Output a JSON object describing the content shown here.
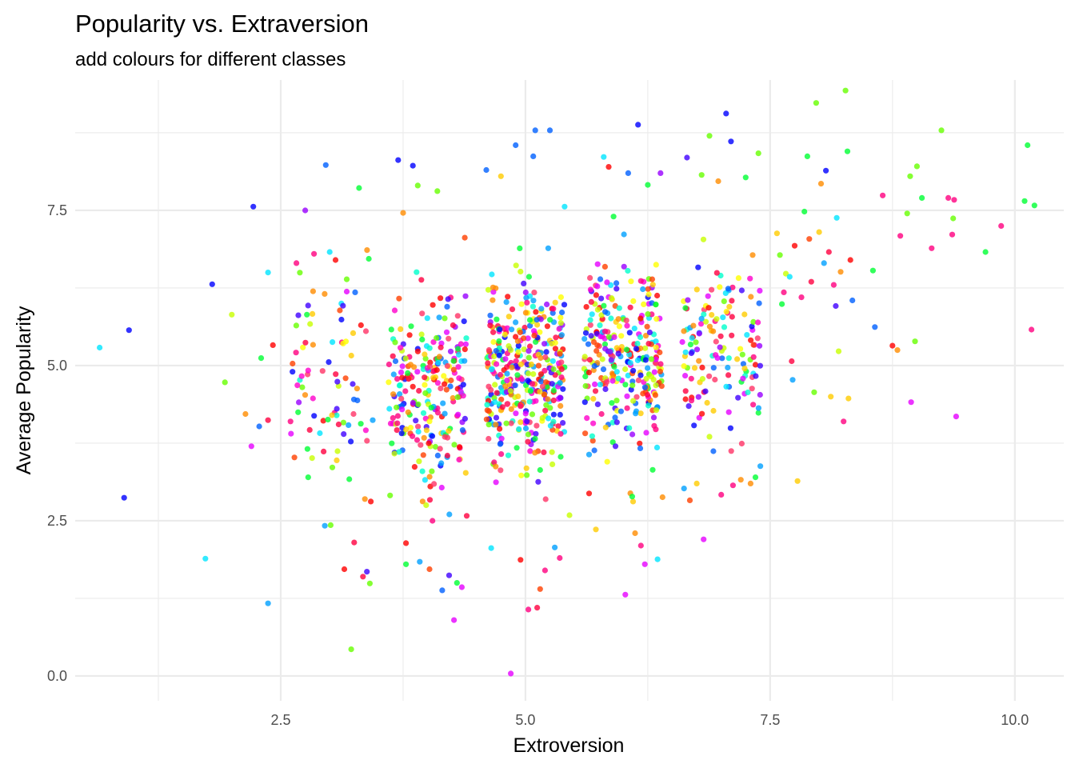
{
  "chart_data": {
    "type": "scatter",
    "title": "Popularity vs. Extraversion",
    "subtitle": "add colours for different classes",
    "xlabel": "Extroversion",
    "ylabel": "Average Popularity",
    "xlim": [
      0.4,
      10.5
    ],
    "ylim": [
      -0.4,
      9.6
    ],
    "x_ticks": [
      2.5,
      5.0,
      7.5,
      10.0
    ],
    "x_tick_labels": [
      "2.5",
      "5.0",
      "7.5",
      "10.0"
    ],
    "x_minor": [
      1.25,
      3.75,
      6.25,
      8.75
    ],
    "y_ticks": [
      0.0,
      2.5,
      5.0,
      7.5
    ],
    "y_tick_labels": [
      "0.0",
      "2.5",
      "5.0",
      "7.5"
    ],
    "y_minor": [
      1.25,
      3.75,
      6.25,
      8.75
    ],
    "grid": true,
    "legend": "none",
    "point_alpha": 0.8,
    "class_colors": [
      "#ff0000",
      "#ff4000",
      "#ff8c00",
      "#ffcc00",
      "#ffff00",
      "#c8ff00",
      "#66ff00",
      "#00ff33",
      "#00ffcc",
      "#00e5ff",
      "#00a0ff",
      "#0060ff",
      "#0000ff",
      "#4000ff",
      "#9900ff",
      "#e600ff",
      "#ff00cc",
      "#ff0080",
      "#ff0040",
      "#ff3366"
    ],
    "points": [
      {
        "x": 0.65,
        "y": 5.29,
        "c": "#00e5ff"
      },
      {
        "x": 0.9,
        "y": 2.87,
        "c": "#0000ff"
      },
      {
        "x": 0.95,
        "y": 5.57,
        "c": "#0000ff"
      },
      {
        "x": 1.73,
        "y": 1.89,
        "c": "#00e5ff"
      },
      {
        "x": 1.8,
        "y": 6.31,
        "c": "#0000ff"
      },
      {
        "x": 1.93,
        "y": 4.73,
        "c": "#66ff00"
      },
      {
        "x": 2.0,
        "y": 5.82,
        "c": "#c8ff00"
      },
      {
        "x": 2.14,
        "y": 4.22,
        "c": "#ff8c00"
      },
      {
        "x": 2.2,
        "y": 3.7,
        "c": "#e600ff"
      },
      {
        "x": 2.22,
        "y": 7.56,
        "c": "#0000ff"
      },
      {
        "x": 2.28,
        "y": 4.02,
        "c": "#0060ff"
      },
      {
        "x": 2.3,
        "y": 5.12,
        "c": "#00ff33"
      },
      {
        "x": 2.37,
        "y": 1.17,
        "c": "#00a0ff"
      },
      {
        "x": 2.37,
        "y": 6.5,
        "c": "#00e5ff"
      },
      {
        "x": 2.37,
        "y": 4.12,
        "c": "#ff0040"
      },
      {
        "x": 2.42,
        "y": 5.33,
        "c": "#ff0000"
      },
      {
        "x": 2.6,
        "y": 4.1,
        "c": "#ff0080"
      },
      {
        "x": 2.62,
        "y": 4.9,
        "c": "#0000ff"
      },
      {
        "x": 2.64,
        "y": 3.52,
        "c": "#ff4000"
      },
      {
        "x": 2.66,
        "y": 6.65,
        "c": "#ff0080"
      },
      {
        "x": 2.68,
        "y": 5.81,
        "c": "#4000ff"
      },
      {
        "x": 2.72,
        "y": 4.65,
        "c": "#66ff00"
      },
      {
        "x": 2.75,
        "y": 7.5,
        "c": "#9900ff"
      },
      {
        "x": 2.78,
        "y": 3.2,
        "c": "#00ff33"
      },
      {
        "x": 2.8,
        "y": 5.67,
        "c": "#c8ff00"
      },
      {
        "x": 2.84,
        "y": 6.8,
        "c": "#ff0080"
      },
      {
        "x": 2.9,
        "y": 3.91,
        "c": "#00e5ff"
      },
      {
        "x": 2.95,
        "y": 2.42,
        "c": "#00a0ff"
      },
      {
        "x": 2.96,
        "y": 8.23,
        "c": "#0060ff"
      },
      {
        "x": 3.0,
        "y": 6.83,
        "c": "#00e5ff"
      },
      {
        "x": 3.01,
        "y": 2.43,
        "c": "#66ff00"
      },
      {
        "x": 3.05,
        "y": 4.24,
        "c": "#ff0080"
      },
      {
        "x": 3.06,
        "y": 6.7,
        "c": "#ff0000"
      },
      {
        "x": 3.08,
        "y": 3.62,
        "c": "#c8ff00"
      },
      {
        "x": 3.12,
        "y": 5.74,
        "c": "#0000ff"
      },
      {
        "x": 3.15,
        "y": 1.72,
        "c": "#ff0000"
      },
      {
        "x": 3.2,
        "y": 3.17,
        "c": "#00ff33"
      },
      {
        "x": 3.22,
        "y": 0.43,
        "c": "#66ff00"
      },
      {
        "x": 3.25,
        "y": 2.15,
        "c": "#ff0040"
      },
      {
        "x": 3.26,
        "y": 6.18,
        "c": "#0060ff"
      },
      {
        "x": 3.28,
        "y": 4.63,
        "c": "#ff8c00"
      },
      {
        "x": 3.3,
        "y": 7.86,
        "c": "#00ff33"
      },
      {
        "x": 3.32,
        "y": 5.65,
        "c": "#ff0000"
      },
      {
        "x": 3.34,
        "y": 1.6,
        "c": "#ff0040"
      },
      {
        "x": 3.36,
        "y": 2.85,
        "c": "#ff8c00"
      },
      {
        "x": 3.38,
        "y": 1.68,
        "c": "#4000ff"
      },
      {
        "x": 3.4,
        "y": 6.72,
        "c": "#00ff33"
      },
      {
        "x": 3.41,
        "y": 1.49,
        "c": "#66ff00"
      },
      {
        "x": 3.42,
        "y": 2.81,
        "c": "#ff0000"
      },
      {
        "x": 3.44,
        "y": 4.12,
        "c": "#00a0ff"
      },
      {
        "x": 7.57,
        "y": 7.13,
        "c": "#ffcc00"
      },
      {
        "x": 7.6,
        "y": 6.78,
        "c": "#66ff00"
      },
      {
        "x": 7.62,
        "y": 5.99,
        "c": "#00ff33"
      },
      {
        "x": 7.64,
        "y": 6.18,
        "c": "#ff0080"
      },
      {
        "x": 7.66,
        "y": 6.48,
        "c": "#c8ff00"
      },
      {
        "x": 7.7,
        "y": 6.43,
        "c": "#00e5ff"
      },
      {
        "x": 7.72,
        "y": 5.07,
        "c": "#ff0040"
      },
      {
        "x": 7.73,
        "y": 4.77,
        "c": "#00a0ff"
      },
      {
        "x": 7.75,
        "y": 6.93,
        "c": "#ff0000"
      },
      {
        "x": 7.78,
        "y": 3.14,
        "c": "#ffcc00"
      },
      {
        "x": 7.82,
        "y": 6.1,
        "c": "#ff0080"
      },
      {
        "x": 7.85,
        "y": 7.48,
        "c": "#00ff33"
      },
      {
        "x": 7.88,
        "y": 8.37,
        "c": "#00ff33"
      },
      {
        "x": 7.9,
        "y": 7.04,
        "c": "#ff4000"
      },
      {
        "x": 7.92,
        "y": 6.35,
        "c": "#ff0040"
      },
      {
        "x": 7.95,
        "y": 4.57,
        "c": "#66ff00"
      },
      {
        "x": 7.97,
        "y": 9.23,
        "c": "#66ff00"
      },
      {
        "x": 8.0,
        "y": 7.15,
        "c": "#ffcc00"
      },
      {
        "x": 8.02,
        "y": 7.93,
        "c": "#ff8c00"
      },
      {
        "x": 8.05,
        "y": 6.65,
        "c": "#00a0ff"
      },
      {
        "x": 8.07,
        "y": 8.14,
        "c": "#0000ff"
      },
      {
        "x": 8.1,
        "y": 6.83,
        "c": "#ff0040"
      },
      {
        "x": 8.12,
        "y": 4.5,
        "c": "#ffcc00"
      },
      {
        "x": 8.15,
        "y": 6.3,
        "c": "#ff0080"
      },
      {
        "x": 8.17,
        "y": 5.96,
        "c": "#4000ff"
      },
      {
        "x": 8.18,
        "y": 7.38,
        "c": "#00e5ff"
      },
      {
        "x": 8.2,
        "y": 5.23,
        "c": "#c8ff00"
      },
      {
        "x": 8.22,
        "y": 6.51,
        "c": "#ff8c00"
      },
      {
        "x": 8.25,
        "y": 4.1,
        "c": "#ff0080"
      },
      {
        "x": 8.27,
        "y": 9.43,
        "c": "#66ff00"
      },
      {
        "x": 8.29,
        "y": 8.45,
        "c": "#00ff33"
      },
      {
        "x": 8.3,
        "y": 4.47,
        "c": "#ffcc00"
      },
      {
        "x": 8.32,
        "y": 6.7,
        "c": "#ff0000"
      },
      {
        "x": 8.34,
        "y": 6.05,
        "c": "#0060ff"
      },
      {
        "x": 8.55,
        "y": 6.53,
        "c": "#00ff33"
      },
      {
        "x": 8.57,
        "y": 5.62,
        "c": "#0060ff"
      },
      {
        "x": 8.65,
        "y": 7.74,
        "c": "#ff0080"
      },
      {
        "x": 8.75,
        "y": 5.32,
        "c": "#ff0000"
      },
      {
        "x": 8.8,
        "y": 5.25,
        "c": "#ff8c00"
      },
      {
        "x": 8.83,
        "y": 7.09,
        "c": "#ff0080"
      },
      {
        "x": 8.9,
        "y": 7.45,
        "c": "#66ff00"
      },
      {
        "x": 8.93,
        "y": 8.05,
        "c": "#66ff00"
      },
      {
        "x": 8.94,
        "y": 4.41,
        "c": "#e600ff"
      },
      {
        "x": 8.98,
        "y": 5.39,
        "c": "#66ff00"
      },
      {
        "x": 9.0,
        "y": 8.21,
        "c": "#66ff00"
      },
      {
        "x": 9.05,
        "y": 7.7,
        "c": "#00ff33"
      },
      {
        "x": 9.15,
        "y": 6.89,
        "c": "#ff0080"
      },
      {
        "x": 9.25,
        "y": 8.79,
        "c": "#66ff00"
      },
      {
        "x": 9.32,
        "y": 7.7,
        "c": "#ff0080"
      },
      {
        "x": 9.36,
        "y": 7.11,
        "c": "#ff0080"
      },
      {
        "x": 9.37,
        "y": 7.37,
        "c": "#66ff00"
      },
      {
        "x": 9.38,
        "y": 7.67,
        "c": "#ff0080"
      },
      {
        "x": 9.4,
        "y": 4.18,
        "c": "#e600ff"
      },
      {
        "x": 9.7,
        "y": 6.83,
        "c": "#00ff33"
      },
      {
        "x": 9.86,
        "y": 7.25,
        "c": "#ff0080"
      },
      {
        "x": 10.1,
        "y": 7.65,
        "c": "#00ff33"
      },
      {
        "x": 10.13,
        "y": 8.55,
        "c": "#00ff33"
      },
      {
        "x": 10.17,
        "y": 5.58,
        "c": "#ff0080"
      },
      {
        "x": 10.2,
        "y": 7.58,
        "c": "#00ff33"
      },
      {
        "x": 3.7,
        "y": 8.31,
        "c": "#0000ff"
      },
      {
        "x": 3.75,
        "y": 7.46,
        "c": "#ff8c00"
      },
      {
        "x": 3.78,
        "y": 2.14,
        "c": "#ff0000"
      },
      {
        "x": 3.78,
        "y": 1.8,
        "c": "#00ff33"
      },
      {
        "x": 3.85,
        "y": 8.22,
        "c": "#0000ff"
      },
      {
        "x": 3.9,
        "y": 7.9,
        "c": "#66ff00"
      },
      {
        "x": 3.92,
        "y": 1.84,
        "c": "#00a0ff"
      },
      {
        "x": 4.02,
        "y": 1.72,
        "c": "#ff4000"
      },
      {
        "x": 4.05,
        "y": 2.5,
        "c": "#ff0080"
      },
      {
        "x": 4.1,
        "y": 7.81,
        "c": "#66ff00"
      },
      {
        "x": 4.15,
        "y": 1.38,
        "c": "#0060ff"
      },
      {
        "x": 4.22,
        "y": 1.62,
        "c": "#4000ff"
      },
      {
        "x": 4.27,
        "y": 0.9,
        "c": "#e600ff"
      },
      {
        "x": 4.3,
        "y": 1.5,
        "c": "#00ff33"
      },
      {
        "x": 4.35,
        "y": 1.43,
        "c": "#e600ff"
      },
      {
        "x": 4.38,
        "y": 7.06,
        "c": "#ff4000"
      },
      {
        "x": 4.4,
        "y": 2.58,
        "c": "#ff0040"
      },
      {
        "x": 4.6,
        "y": 8.15,
        "c": "#0060ff"
      },
      {
        "x": 4.65,
        "y": 2.06,
        "c": "#00e5ff"
      },
      {
        "x": 4.75,
        "y": 8.05,
        "c": "#ffcc00"
      },
      {
        "x": 4.85,
        "y": 0.04,
        "c": "#e600ff"
      },
      {
        "x": 4.9,
        "y": 8.55,
        "c": "#0060ff"
      },
      {
        "x": 4.95,
        "y": 1.87,
        "c": "#ff0000"
      },
      {
        "x": 5.03,
        "y": 1.07,
        "c": "#ff0080"
      },
      {
        "x": 5.08,
        "y": 8.37,
        "c": "#0060ff"
      },
      {
        "x": 5.1,
        "y": 8.79,
        "c": "#0060ff"
      },
      {
        "x": 5.12,
        "y": 1.1,
        "c": "#ff0040"
      },
      {
        "x": 5.15,
        "y": 1.4,
        "c": "#ff4000"
      },
      {
        "x": 5.2,
        "y": 1.7,
        "c": "#ff0080"
      },
      {
        "x": 5.25,
        "y": 8.79,
        "c": "#0060ff"
      },
      {
        "x": 5.3,
        "y": 2.07,
        "c": "#00a0ff"
      },
      {
        "x": 5.35,
        "y": 1.9,
        "c": "#ff0080"
      },
      {
        "x": 5.4,
        "y": 7.56,
        "c": "#00e5ff"
      },
      {
        "x": 5.45,
        "y": 2.59,
        "c": "#c8ff00"
      },
      {
        "x": 5.65,
        "y": 2.94,
        "c": "#ff0000"
      },
      {
        "x": 5.72,
        "y": 2.36,
        "c": "#ffcc00"
      },
      {
        "x": 5.8,
        "y": 8.36,
        "c": "#00e5ff"
      },
      {
        "x": 5.85,
        "y": 8.2,
        "c": "#ff0000"
      },
      {
        "x": 5.9,
        "y": 7.4,
        "c": "#00ff33"
      },
      {
        "x": 6.02,
        "y": 1.31,
        "c": "#e600ff"
      },
      {
        "x": 6.05,
        "y": 8.1,
        "c": "#0060ff"
      },
      {
        "x": 6.1,
        "y": 2.81,
        "c": "#ffcc00"
      },
      {
        "x": 6.12,
        "y": 2.3,
        "c": "#ff8c00"
      },
      {
        "x": 6.15,
        "y": 8.88,
        "c": "#0000ff"
      },
      {
        "x": 6.18,
        "y": 2.1,
        "c": "#ff0080"
      },
      {
        "x": 6.22,
        "y": 1.8,
        "c": "#e600ff"
      },
      {
        "x": 6.25,
        "y": 7.91,
        "c": "#00ff33"
      },
      {
        "x": 6.3,
        "y": 3.32,
        "c": "#00ff33"
      },
      {
        "x": 6.35,
        "y": 1.88,
        "c": "#00e5ff"
      },
      {
        "x": 6.38,
        "y": 8.1,
        "c": "#9900ff"
      },
      {
        "x": 6.4,
        "y": 2.88,
        "c": "#ff8c00"
      },
      {
        "x": 6.62,
        "y": 3.02,
        "c": "#00a0ff"
      },
      {
        "x": 6.65,
        "y": 8.35,
        "c": "#4000ff"
      },
      {
        "x": 6.68,
        "y": 2.83,
        "c": "#ff4000"
      },
      {
        "x": 6.75,
        "y": 3.1,
        "c": "#ffcc00"
      },
      {
        "x": 6.8,
        "y": 8.07,
        "c": "#66ff00"
      },
      {
        "x": 6.82,
        "y": 2.2,
        "c": "#e600ff"
      },
      {
        "x": 6.88,
        "y": 8.7,
        "c": "#66ff00"
      },
      {
        "x": 6.92,
        "y": 3.62,
        "c": "#0060ff"
      },
      {
        "x": 6.97,
        "y": 7.97,
        "c": "#ff8c00"
      },
      {
        "x": 7.0,
        "y": 2.92,
        "c": "#ff0080"
      },
      {
        "x": 7.05,
        "y": 9.06,
        "c": "#0000ff"
      },
      {
        "x": 7.1,
        "y": 8.61,
        "c": "#0000ff"
      },
      {
        "x": 7.12,
        "y": 3.07,
        "c": "#ff0080"
      },
      {
        "x": 7.2,
        "y": 3.16,
        "c": "#ff8c00"
      },
      {
        "x": 7.25,
        "y": 8.03,
        "c": "#00ff33"
      },
      {
        "x": 7.3,
        "y": 3.1,
        "c": "#ff8c00"
      },
      {
        "x": 7.35,
        "y": 3.2,
        "c": "#00ff33"
      },
      {
        "x": 7.38,
        "y": 8.42,
        "c": "#66ff00"
      },
      {
        "x": 7.4,
        "y": 3.38,
        "c": "#00a0ff"
      }
    ]
  }
}
